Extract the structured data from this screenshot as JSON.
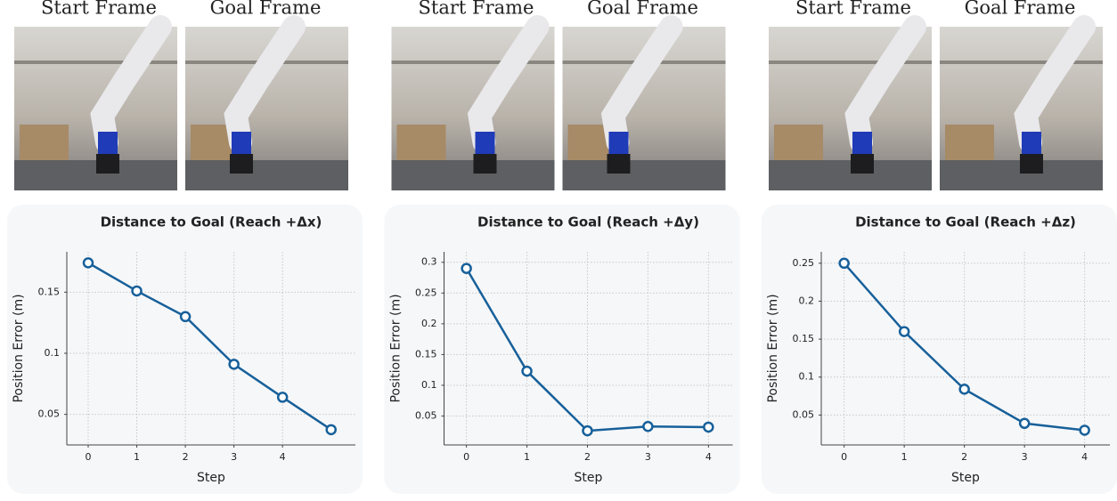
{
  "frames": [
    {
      "start": "Start Frame",
      "goal": "Goal Frame"
    },
    {
      "start": "Start Frame",
      "goal": "Goal Frame"
    },
    {
      "start": "Start Frame",
      "goal": "Goal Frame"
    }
  ],
  "chart_data": [
    {
      "type": "line",
      "title": "Distance to Goal (Reach +Δx)",
      "x_label": "Step",
      "y_label": "Position Error (m)",
      "x": [
        0,
        1,
        2,
        3,
        4,
        5
      ],
      "series": [
        {
          "color": "#17609a",
          "values": [
            0.174,
            0.151,
            0.13,
            0.091,
            0.064,
            0.0375
          ]
        }
      ],
      "xlim": [
        -0.44,
        5.5
      ],
      "ylim": [
        0.025,
        0.183
      ],
      "xticks": [
        0,
        1,
        2,
        3,
        4
      ],
      "yticks": [
        0.05,
        0.1,
        0.15
      ],
      "grid": true
    },
    {
      "type": "line",
      "title": "Distance to Goal (Reach +Δy)",
      "x_label": "Step",
      "y_label": "Position Error (m)",
      "x": [
        0,
        1,
        2,
        3,
        4
      ],
      "series": [
        {
          "color": "#17609a",
          "values": [
            0.29,
            0.123,
            0.026,
            0.033,
            0.032
          ]
        }
      ],
      "xlim": [
        -0.37,
        4.4
      ],
      "ylim": [
        0.003,
        0.317
      ],
      "xticks": [
        0,
        1,
        2,
        3,
        4
      ],
      "yticks": [
        0.05,
        0.1,
        0.15,
        0.2,
        0.25,
        0.3
      ],
      "grid": true
    },
    {
      "type": "line",
      "title": "Distance to Goal (Reach +Δz)",
      "x_label": "Step",
      "y_label": "Position Error (m)",
      "x": [
        0,
        1,
        2,
        3,
        4
      ],
      "series": [
        {
          "color": "#17609a",
          "values": [
            0.25,
            0.16,
            0.084,
            0.039,
            0.03
          ]
        }
      ],
      "xlim": [
        -0.38,
        4.42
      ],
      "ylim": [
        0.0106,
        0.265
      ],
      "xticks": [
        0,
        1,
        2,
        3,
        4
      ],
      "yticks": [
        0.05,
        0.1,
        0.15,
        0.2,
        0.25
      ],
      "grid": true
    }
  ]
}
